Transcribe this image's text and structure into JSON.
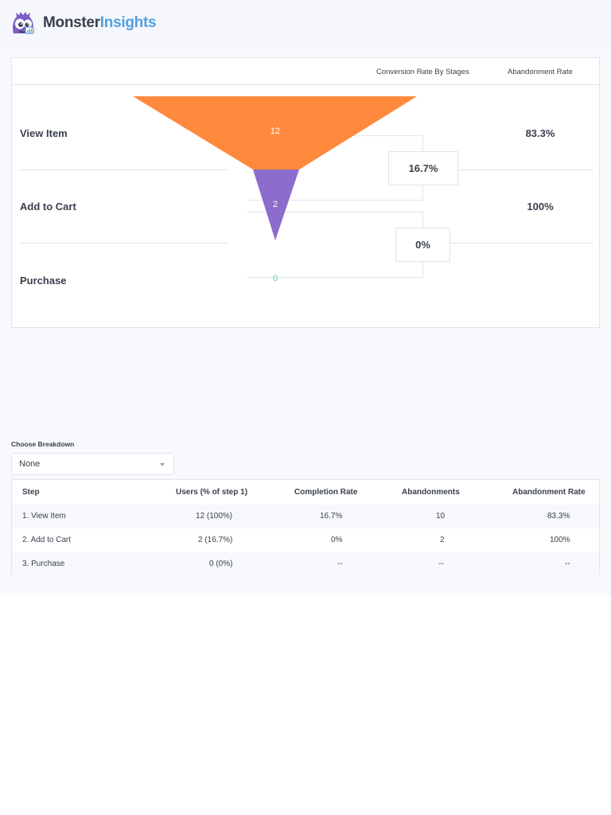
{
  "brand": {
    "name_part1": "Monster",
    "name_part2": "Insights",
    "color_dark": "#393f4c",
    "color_blue": "#509fe2"
  },
  "funnel": {
    "headers": {
      "conversion": "Conversion Rate By Stages",
      "abandonment": "Abandonment Rate"
    },
    "stages": [
      {
        "label": "View Item",
        "users": "12",
        "abandonment_rate": "83.3%",
        "color": "#ff8a3d"
      },
      {
        "label": "Add to Cart",
        "users": "2",
        "abandonment_rate": "100%",
        "color": "#8c6ccc"
      },
      {
        "label": "Purchase",
        "users": "0",
        "abandonment_rate": "",
        "color": "#5fd3a8"
      }
    ],
    "conversion_rates": [
      "16.7%",
      "0%"
    ]
  },
  "breakdown": {
    "label": "Choose Breakdown",
    "selected": "None"
  },
  "table": {
    "headers": [
      "Step",
      "Users (% of step 1)",
      "Completion Rate",
      "Abandonments",
      "Abandonment Rate"
    ],
    "rows": [
      [
        "1. View Item",
        "12 (100%)",
        "16.7%",
        "10",
        "83.3%"
      ],
      [
        "2. Add to Cart",
        "2 (16.7%)",
        "0%",
        "2",
        "100%"
      ],
      [
        "3. Purchase",
        "0 (0%)",
        "--",
        "--",
        "--"
      ]
    ]
  }
}
